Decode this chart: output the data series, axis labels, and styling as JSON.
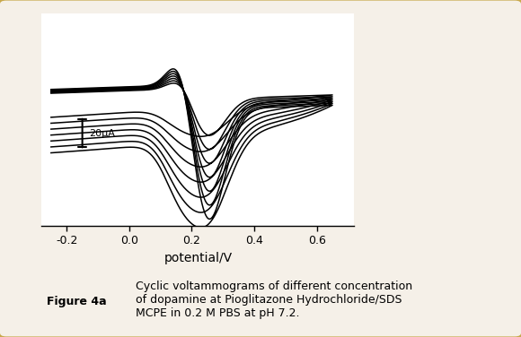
{
  "xlabel": "potential/V",
  "xlim": [
    -0.28,
    0.72
  ],
  "ylim": [
    -1.0,
    0.65
  ],
  "xticks": [
    -0.2,
    0.0,
    0.2,
    0.4,
    0.6
  ],
  "xtick_labels": [
    "-0.2",
    "0.0",
    "0.2",
    "0.4",
    "0.6"
  ],
  "n_curves": 7,
  "scalebar_label": "20μA",
  "figure_label": "Figure 4a",
  "caption": "Cyclic voltammograms of different concentration\nof dopamine at Pioglitazone Hydrochloride/SDS\nMCPE in 0.2 M PBS at pH 7.2.",
  "bg_color": "#f5f0e8",
  "plot_bg": "#ffffff",
  "border_color": "#c8a84b",
  "figure_label_bg": "#c8c8c8",
  "line_color": "#000000",
  "line_width": 1.1
}
